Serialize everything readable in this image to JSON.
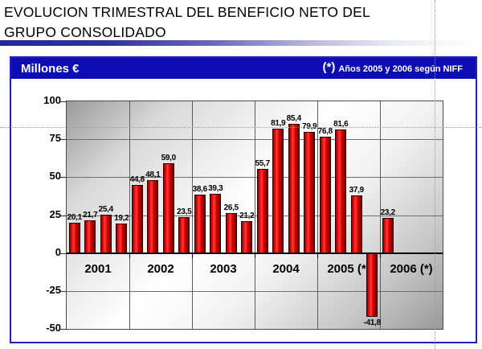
{
  "title": {
    "line1": "EVOLUCION TRIMESTRAL DEL BENEFICIO NETO DEL",
    "line2": "GRUPO CONSOLIDADO"
  },
  "header": {
    "unit": "Millones €",
    "footnote_star": "(*)",
    "footnote_text": "Años 2005 y 2006 según NIFF"
  },
  "colors": {
    "bar_red": "#dd0000",
    "bar_dark_edge": "#5f0000",
    "band_blue": "#0d0db4",
    "frame_blue": "#2323b3",
    "underline_blue": "#26269e"
  },
  "chart_data": {
    "type": "bar",
    "title": "EVOLUCION TRIMESTRAL DEL BENEFICIO NETO DEL GRUPO CONSOLIDADO",
    "ylabel": "Millones €",
    "xlabel": "",
    "ylim": [
      -50,
      100
    ],
    "yticks": [
      100,
      75,
      50,
      25,
      0,
      -25,
      -50
    ],
    "grid": true,
    "legend": false,
    "decimal_separator": ",",
    "categories": [
      "2001",
      "2002",
      "2003",
      "2004",
      "2005 (*)",
      "2006 (*)"
    ],
    "groups": [
      {
        "category": "2001",
        "values": [
          20.1,
          21.7,
          25.4,
          19.2
        ]
      },
      {
        "category": "2002",
        "values": [
          44.8,
          48.1,
          59.0,
          23.5
        ]
      },
      {
        "category": "2003",
        "values": [
          38.6,
          39.3,
          26.5,
          21.2
        ]
      },
      {
        "category": "2004",
        "values": [
          55.7,
          81.9,
          85.4,
          79.9
        ]
      },
      {
        "category": "2005 (*)",
        "values": [
          76.8,
          81.6,
          37.9,
          -41.8
        ]
      },
      {
        "category": "2006 (*)",
        "values": [
          23.2
        ]
      }
    ]
  }
}
